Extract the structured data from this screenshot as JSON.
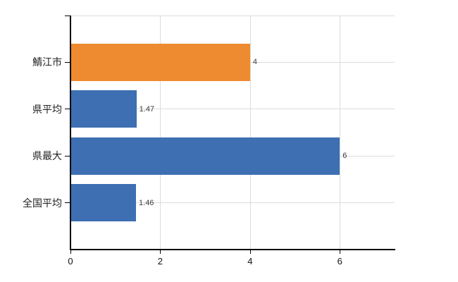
{
  "chart_data": {
    "type": "bar",
    "orientation": "horizontal",
    "title": "",
    "xlabel": "",
    "ylabel": "",
    "categories": [
      "鯖江市",
      "県平均",
      "県最大",
      "全国平均"
    ],
    "values": [
      4,
      1.47,
      6,
      1.46
    ],
    "value_labels": [
      "4",
      "1.47",
      "6",
      "1.46"
    ],
    "bar_colors": [
      "#ee8a2f",
      "#3d6fb2",
      "#3d6fb2",
      "#3d6fb2"
    ],
    "xlim": [
      0,
      7.22
    ],
    "xticks": [
      0,
      2,
      4,
      6
    ],
    "xtick_labels": [
      "0",
      "2",
      "4",
      "6"
    ],
    "grid": true,
    "legend_position": "none",
    "colors": {
      "highlight_bar": "#ee8a2f",
      "default_bar": "#3d6fb2",
      "grid": "#d9ddd9",
      "axis": "#000000",
      "value_text": "#3c3c3c",
      "tick_text": "#111111",
      "background": "#ffffff"
    }
  }
}
